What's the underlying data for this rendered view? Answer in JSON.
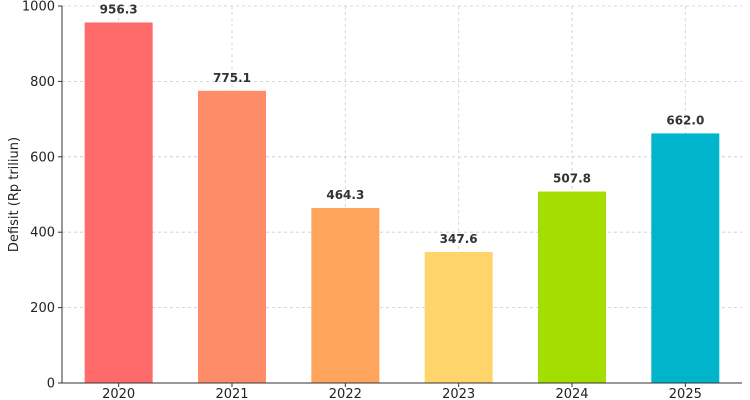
{
  "chart_data": {
    "type": "bar",
    "categories": [
      "2020",
      "2021",
      "2022",
      "2023",
      "2024",
      "2025"
    ],
    "values": [
      956.3,
      775.1,
      464.3,
      347.6,
      507.8,
      662.0
    ],
    "data_labels": [
      "956.3",
      "775.1",
      "464.3",
      "347.6",
      "507.8",
      "662.0"
    ],
    "colors": [
      "#ff6b6b",
      "#ff8c69",
      "#ffa45b",
      "#ffd56b",
      "#a3de00",
      "#00b4cc"
    ],
    "ylabel": "Defisit (Rp triliun)",
    "ylim": [
      0,
      1000
    ],
    "yticks": [
      0,
      200,
      400,
      600,
      800,
      1000
    ],
    "grid": true,
    "legend": "none"
  }
}
